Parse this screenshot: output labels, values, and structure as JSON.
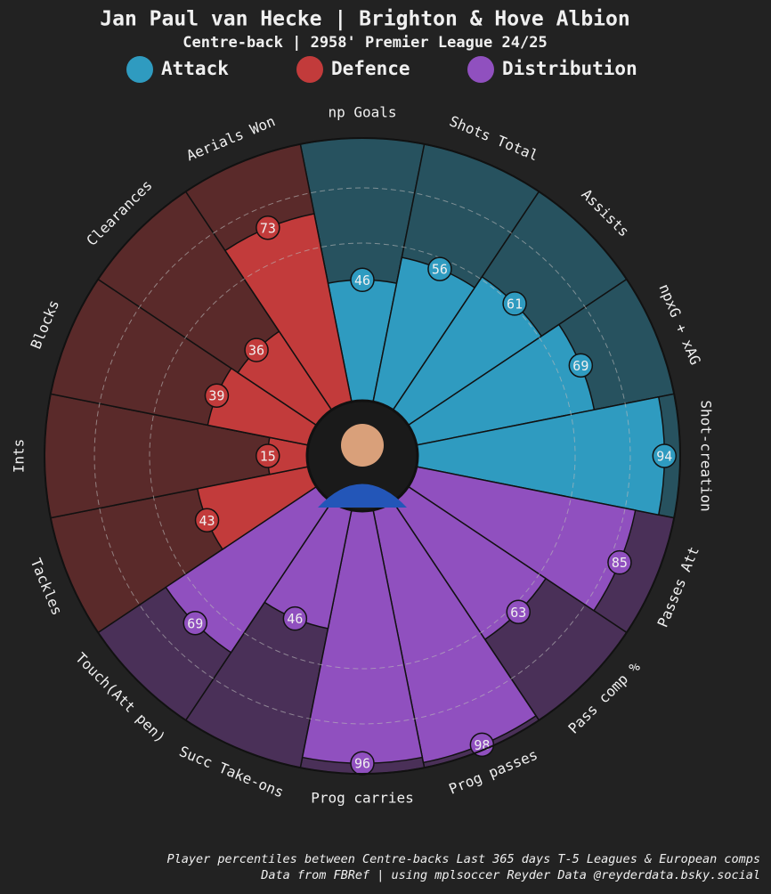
{
  "chart_data": {
    "type": "pizza",
    "title": "Jan Paul van Hecke | Brighton & Hove Albion",
    "subtitle": "Centre-back | 2958' Premier League 24/25",
    "ylim": [
      0,
      100
    ],
    "series": [
      {
        "name": "Attack",
        "color": "#2f9bc0",
        "background": "#27525f",
        "categories": [
          "np Goals",
          "Shots Total",
          "Assists",
          "npxG + xAG",
          "Shot-creation"
        ],
        "values": [
          46,
          56,
          61,
          69,
          94
        ]
      },
      {
        "name": "Distribution",
        "color": "#9050bf",
        "background": "#4a3058",
        "categories": [
          "Passes Att",
          "Pass comp %",
          "Prog passes",
          "Prog carries",
          "Succ Take-ons",
          "Touch(Att pen)"
        ],
        "values": [
          85,
          63,
          98,
          96,
          46,
          69
        ]
      },
      {
        "name": "Defence",
        "color": "#c23b3b",
        "background": "#5a2a2a",
        "categories": [
          "Tackles",
          "Ints",
          "Blocks",
          "Clearances",
          "Aerials Won"
        ],
        "values": [
          43,
          15,
          39,
          36,
          73
        ]
      }
    ],
    "legend_order": [
      0,
      2,
      1
    ],
    "footnote": [
      "Player percentiles between Centre-backs Last 365 days T-5 Leagues & European comps",
      "Data from FBRef | using mplsoccer Reyder Data @reyderdata.bsky.social"
    ]
  }
}
